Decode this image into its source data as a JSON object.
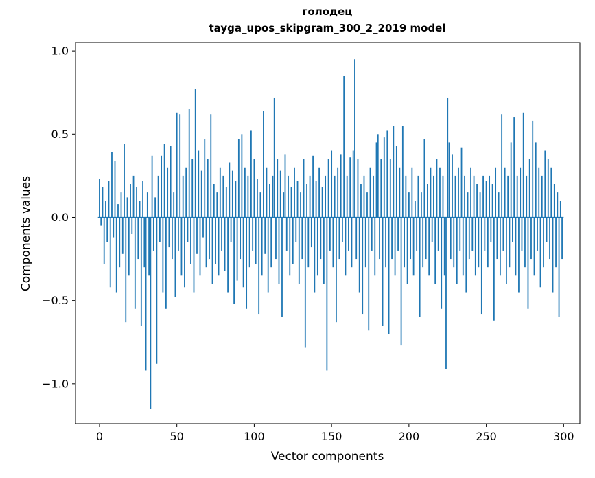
{
  "figure": {
    "title_word": "голодец",
    "title_model": "tayga_upos_skipgram_300_2_2019 model",
    "xlabel": "Vector components",
    "ylabel": "Components values"
  },
  "chart_data": {
    "type": "bar",
    "title": "голодец",
    "subtitle": "tayga_upos_skipgram_300_2_2019 model",
    "xlabel": "Vector components",
    "ylabel": "Components values",
    "bar_color": "#1f77b4",
    "axis_color": "#000000",
    "xlim": [
      -15.5,
      310.5
    ],
    "ylim": [
      -1.24,
      1.05
    ],
    "xticks": [
      {
        "v": 0,
        "label": "0"
      },
      {
        "v": 50,
        "label": "50"
      },
      {
        "v": 100,
        "label": "100"
      },
      {
        "v": 150,
        "label": "150"
      },
      {
        "v": 200,
        "label": "200"
      },
      {
        "v": 250,
        "label": "250"
      },
      {
        "v": 300,
        "label": "300"
      }
    ],
    "yticks": [
      {
        "v": -1.0,
        "label": "−1.0"
      },
      {
        "v": -0.5,
        "label": "−0.5"
      },
      {
        "v": 0.0,
        "label": "0.0"
      },
      {
        "v": 0.5,
        "label": "0.5"
      },
      {
        "v": 1.0,
        "label": "1.0"
      }
    ],
    "values": [
      0.23,
      -0.05,
      0.18,
      -0.28,
      0.1,
      -0.15,
      0.22,
      -0.42,
      0.39,
      -0.12,
      0.34,
      -0.45,
      0.08,
      -0.3,
      0.15,
      -0.22,
      0.44,
      -0.63,
      0.12,
      -0.35,
      0.2,
      -0.1,
      0.25,
      -0.55,
      0.18,
      -0.25,
      0.1,
      -0.65,
      0.22,
      -0.3,
      -0.92,
      0.15,
      -0.35,
      -1.15,
      0.37,
      -0.2,
      0.12,
      -0.88,
      0.25,
      -0.15,
      0.37,
      -0.45,
      0.44,
      -0.55,
      0.3,
      -0.18,
      0.43,
      -0.25,
      0.15,
      -0.48,
      0.63,
      -0.2,
      0.62,
      -0.35,
      0.25,
      -0.42,
      0.3,
      -0.15,
      0.65,
      -0.28,
      0.35,
      -0.45,
      0.77,
      -0.22,
      0.4,
      -0.35,
      0.28,
      -0.12,
      0.47,
      -0.3,
      0.35,
      -0.25,
      0.62,
      -0.4,
      0.2,
      -0.28,
      0.15,
      -0.35,
      0.3,
      -0.2,
      0.25,
      -0.32,
      0.18,
      -0.45,
      0.33,
      -0.15,
      0.28,
      -0.52,
      0.22,
      -0.38,
      0.47,
      -0.25,
      0.5,
      -0.42,
      0.3,
      -0.55,
      0.25,
      -0.3,
      0.52,
      -0.2,
      0.35,
      -0.28,
      0.23,
      -0.58,
      0.15,
      -0.35,
      0.64,
      -0.22,
      0.3,
      -0.45,
      0.2,
      -0.3,
      0.25,
      0.72,
      -0.25,
      0.35,
      -0.4,
      0.28,
      -0.6,
      0.15,
      0.38,
      -0.2,
      0.25,
      -0.35,
      0.18,
      -0.28,
      0.3,
      -0.15,
      0.22,
      -0.4,
      0.15,
      -0.25,
      0.35,
      -0.78,
      0.2,
      -0.3,
      0.25,
      -0.18,
      0.37,
      -0.45,
      0.22,
      -0.35,
      0.3,
      -0.25,
      0.18,
      -0.4,
      0.25,
      -0.92,
      0.35,
      -0.2,
      0.4,
      -0.3,
      0.25,
      -0.63,
      0.3,
      -0.25,
      0.38,
      -0.15,
      0.85,
      -0.35,
      0.25,
      -0.2,
      0.36,
      -0.3,
      0.4,
      0.95,
      -0.25,
      0.35,
      -0.45,
      0.2,
      -0.58,
      0.25,
      -0.3,
      0.15,
      -0.68,
      0.3,
      -0.2,
      0.25,
      -0.35,
      0.45,
      0.5,
      -0.25,
      0.35,
      -0.65,
      0.48,
      -0.3,
      0.52,
      -0.7,
      0.35,
      -0.25,
      0.55,
      -0.35,
      0.43,
      -0.2,
      0.3,
      -0.77,
      0.55,
      -0.3,
      0.25,
      -0.4,
      0.15,
      -0.25,
      0.3,
      -0.35,
      0.1,
      -0.2,
      0.25,
      -0.6,
      0.15,
      -0.3,
      0.47,
      -0.25,
      0.2,
      -0.35,
      0.3,
      -0.15,
      0.25,
      -0.4,
      0.35,
      -0.2,
      0.3,
      -0.55,
      0.25,
      -0.35,
      -0.91,
      0.72,
      0.45,
      -0.25,
      0.38,
      -0.3,
      0.25,
      -0.4,
      0.3,
      -0.2,
      0.42,
      -0.35,
      0.25,
      -0.45,
      0.15,
      -0.25,
      0.3,
      -0.2,
      0.25,
      -0.35,
      0.2,
      -0.3,
      0.15,
      -0.58,
      0.25,
      -0.2,
      0.22,
      -0.3,
      0.25,
      -0.15,
      0.2,
      -0.62,
      0.3,
      -0.25,
      0.15,
      -0.35,
      0.62,
      -0.2,
      0.3,
      -0.4,
      0.25,
      -0.3,
      0.45,
      -0.15,
      0.6,
      -0.35,
      0.25,
      -0.45,
      0.3,
      -0.2,
      0.63,
      -0.3,
      0.25,
      -0.55,
      0.35,
      -0.25,
      0.58,
      -0.35,
      0.45,
      -0.2,
      0.3,
      -0.42,
      0.25,
      -0.3,
      0.4,
      -0.15,
      0.35,
      -0.25,
      0.3,
      -0.45,
      0.2,
      -0.3,
      0.15,
      -0.6,
      0.1,
      -0.25
    ]
  }
}
